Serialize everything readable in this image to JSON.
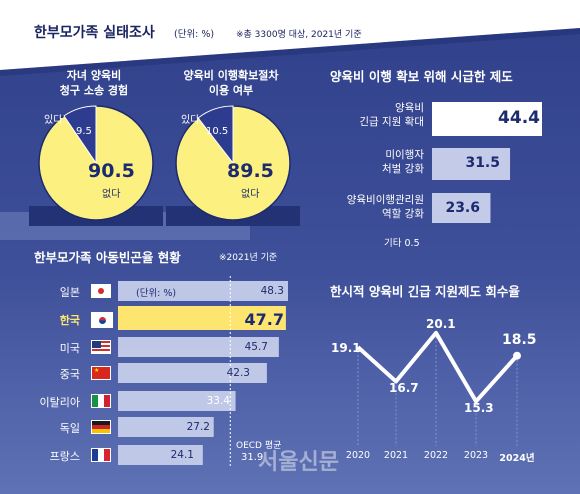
{
  "header": {
    "title": "한부모가족 실태조사",
    "unit": "(단위: %)",
    "note": "※총 3300명 대상, 2021년 기준"
  },
  "pie_left": {
    "title_line1": "자녀 양육비",
    "title_line2": "청구 소송 경험",
    "yes_label": "있다",
    "yes_value": 9.5,
    "no_label": "없다",
    "no_value": 90.5
  },
  "pie_right": {
    "title_line1": "양육비 이행확보절차",
    "title_line2": "이용 여부",
    "yes_label": "있다",
    "yes_value": 10.5,
    "no_label": "없다",
    "no_value": 89.5
  },
  "urgent": {
    "title": "양육비 이행 확보 위해 시급한 제도",
    "items": [
      {
        "label_line1": "양육비",
        "label_line2": "긴급 지원 확대",
        "value": 44.4,
        "highlight": true
      },
      {
        "label_line1": "미이행자",
        "label_line2": "처벌 강화",
        "value": 31.5,
        "highlight": false
      },
      {
        "label_line1": "양육비이행관리원",
        "label_line2": "역할 강화",
        "value": 23.6,
        "highlight": false
      }
    ],
    "other": "기타 0.5"
  },
  "poverty": {
    "title": "한부모가족 아동빈곤율 현황",
    "note": "※2021년 기준",
    "unit": "(단위: %)",
    "oecd_label": "OECD 평균",
    "oecd_value": 31.9,
    "highlight_color": "#fde56f"
  },
  "recovery": {
    "title": "한시적 양육비 긴급 지원제도 회수율"
  },
  "watermark": "서울신문",
  "chart_data": [
    {
      "type": "pie",
      "title": "자녀 양육비 청구 소송 경험",
      "categories": [
        "있다",
        "없다"
      ],
      "values": [
        9.5,
        90.5
      ]
    },
    {
      "type": "pie",
      "title": "양육비 이행확보절차 이용 여부",
      "categories": [
        "있다",
        "없다"
      ],
      "values": [
        10.5,
        89.5
      ]
    },
    {
      "type": "bar",
      "title": "양육비 이행 확보 위해 시급한 제도",
      "categories": [
        "양육비 긴급 지원 확대",
        "미이행자 처벌 강화",
        "양육비이행관리원 역할 강화",
        "기타"
      ],
      "values": [
        44.4,
        31.5,
        23.6,
        0.5
      ]
    },
    {
      "type": "bar",
      "title": "한부모가족 아동빈곤율 현황",
      "categories": [
        "일본",
        "한국",
        "미국",
        "중국",
        "이탈리아",
        "독일",
        "프랑스"
      ],
      "values": [
        48.3,
        47.7,
        45.7,
        42.3,
        33.4,
        27.2,
        24.1
      ],
      "reference": {
        "label": "OECD 평균",
        "value": 31.9
      }
    },
    {
      "type": "line",
      "title": "한시적 양육비 긴급 지원제도 회수율",
      "x": [
        "2020",
        "2021",
        "2022",
        "2023",
        "2024년"
      ],
      "values": [
        19.1,
        16.7,
        20.1,
        15.3,
        18.5
      ],
      "grid": false
    }
  ]
}
